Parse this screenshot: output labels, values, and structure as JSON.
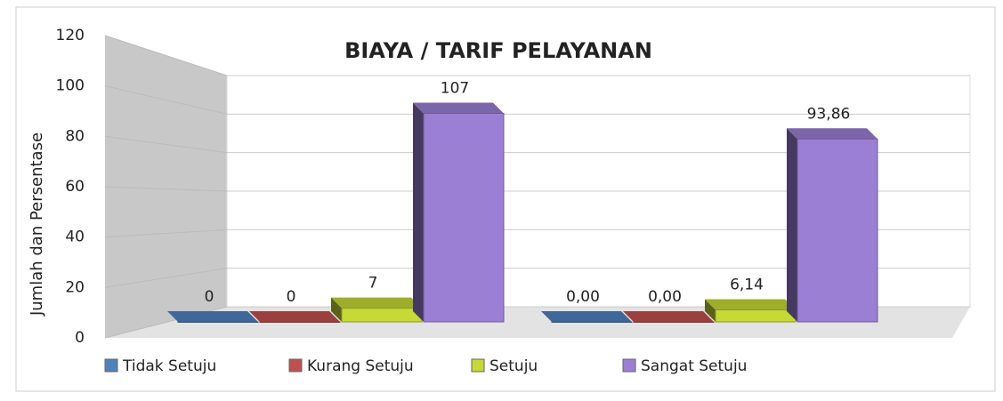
{
  "chart_data": {
    "type": "bar3d",
    "title": "BIAYA / TARIF PELAYANAN",
    "ylabel": "Jumlah dan Persentase",
    "categories": [
      null,
      null
    ],
    "series": [
      {
        "name": "Tidak Setuju",
        "color": "#4f81bd",
        "values": [
          0,
          0
        ],
        "value_labels": [
          "0",
          "0,00"
        ]
      },
      {
        "name": "Kurang Setuju",
        "color": "#c0504d",
        "values": [
          0,
          0
        ],
        "value_labels": [
          "0",
          "0,00"
        ]
      },
      {
        "name": "Setuju",
        "color": "#c6d936",
        "values": [
          7,
          6.14
        ],
        "value_labels": [
          "7",
          "6,14"
        ]
      },
      {
        "name": "Sangat Setuju",
        "color": "#9b7fd4",
        "values": [
          107,
          93.86
        ],
        "value_labels": [
          "107",
          "93,86"
        ]
      }
    ],
    "ylim": [
      0,
      120
    ],
    "yticks": [
      0,
      20,
      40,
      60,
      80,
      100,
      120
    ],
    "grid": true,
    "legend": "bottom"
  }
}
